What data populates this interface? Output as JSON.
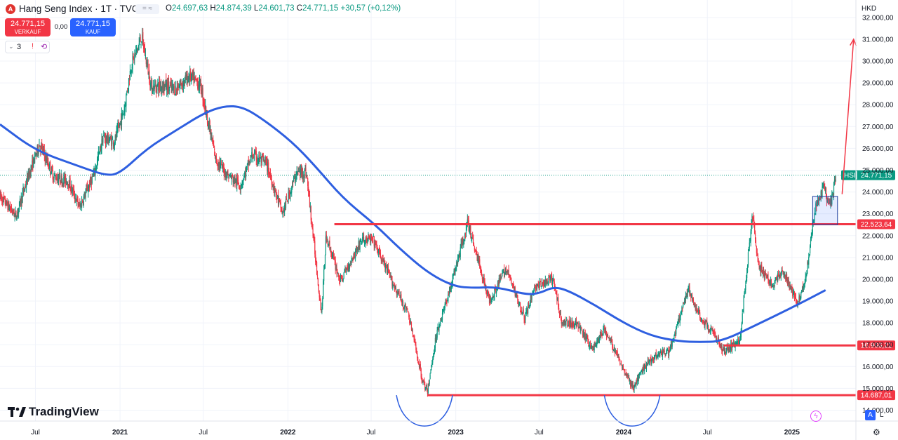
{
  "header": {
    "logo_letter": "A",
    "title": "Hang Seng Index · 1T · TVC",
    "mini_icon": "=  ≈",
    "ohlc": {
      "o_label": "O",
      "o": "24.697,63",
      "h_label": "H",
      "h": "24.874,39",
      "l_label": "L",
      "l": "24.601,73",
      "c_label": "C",
      "c": "24.771,15",
      "change": "+30,57 (+0,12%)"
    },
    "sell": {
      "value": "24.771,15",
      "label": "VERKAUF"
    },
    "buy": {
      "value": "24.771,15",
      "label": "KAUF"
    },
    "spread": "0,00",
    "indicator_count": "3"
  },
  "currency": "HKD",
  "brand": "TradingView",
  "scale_buttons": {
    "auto": "A",
    "log": "L"
  },
  "colors": {
    "up": "#089981",
    "down": "#f23645",
    "ma": "#2e5fe0",
    "level": "#f23645",
    "accent": "#2962ff"
  },
  "chart_data": {
    "type": "candlestick",
    "symbol": "HSI",
    "last_price": 24771.15,
    "last_price_label": "24.771,15",
    "y_range": [
      13500,
      32800
    ],
    "y_ticks": [
      14000,
      15000,
      16000,
      17000,
      18000,
      19000,
      20000,
      21000,
      22000,
      23000,
      24000,
      25000,
      26000,
      27000,
      28000,
      29000,
      30000,
      31000,
      32000
    ],
    "y_tick_labels": [
      "14.000,00",
      "15.000,00",
      "16.000,00",
      "17.000,00",
      "18.000,00",
      "19.000,00",
      "20.000,00",
      "21.000,00",
      "22.000,00",
      "23.000,00",
      "24.000,00",
      "25.000,00",
      "26.000,00",
      "27.000,00",
      "28.000,00",
      "29.000,00",
      "30.000,00",
      "31.000,00",
      "32.000,00"
    ],
    "x_range": [
      "2020-04-15",
      "2025-05-20"
    ],
    "x_ticks": [
      {
        "date": "2020-07-01",
        "label": "Jul"
      },
      {
        "date": "2021-01-01",
        "label": "2021"
      },
      {
        "date": "2021-07-01",
        "label": "Jul"
      },
      {
        "date": "2022-01-01",
        "label": "2022"
      },
      {
        "date": "2022-07-01",
        "label": "Jul"
      },
      {
        "date": "2023-01-01",
        "label": "2023"
      },
      {
        "date": "2023-07-01",
        "label": "Jul"
      },
      {
        "date": "2024-01-01",
        "label": "2024"
      },
      {
        "date": "2024-07-01",
        "label": "Jul"
      },
      {
        "date": "2025-01-01",
        "label": "2025"
      }
    ],
    "price_path": [
      [
        "2020-04-15",
        23800
      ],
      [
        "2020-05-20",
        22900
      ],
      [
        "2020-06-15",
        24700
      ],
      [
        "2020-07-10",
        26200
      ],
      [
        "2020-08-10",
        24700
      ],
      [
        "2020-09-10",
        24500
      ],
      [
        "2020-10-05",
        23300
      ],
      [
        "2020-11-05",
        24800
      ],
      [
        "2020-11-25",
        26500
      ],
      [
        "2020-12-20",
        26300
      ],
      [
        "2021-01-10",
        27800
      ],
      [
        "2021-01-25",
        29800
      ],
      [
        "2021-02-17",
        31100
      ],
      [
        "2021-03-10",
        28800
      ],
      [
        "2021-04-05",
        28900
      ],
      [
        "2021-05-01",
        28700
      ],
      [
        "2021-06-01",
        29300
      ],
      [
        "2021-06-25",
        28900
      ],
      [
        "2021-07-28",
        25500
      ],
      [
        "2021-08-20",
        24850
      ],
      [
        "2021-09-20",
        24300
      ],
      [
        "2021-10-15",
        25700
      ],
      [
        "2021-11-15",
        25300
      ],
      [
        "2021-12-20",
        23000
      ],
      [
        "2022-01-20",
        24900
      ],
      [
        "2022-02-10",
        24900
      ],
      [
        "2022-03-15",
        18400
      ],
      [
        "2022-03-25",
        22000
      ],
      [
        "2022-04-25",
        19900
      ],
      [
        "2022-06-10",
        21800
      ],
      [
        "2022-07-05",
        21800
      ],
      [
        "2022-08-15",
        19900
      ],
      [
        "2022-09-20",
        18400
      ],
      [
        "2022-10-20",
        15400
      ],
      [
        "2022-10-31",
        14800
      ],
      [
        "2022-11-20",
        17500
      ],
      [
        "2022-12-20",
        19600
      ],
      [
        "2023-01-27",
        22600
      ],
      [
        "2023-03-15",
        19000
      ],
      [
        "2023-04-20",
        20500
      ],
      [
        "2023-05-31",
        18200
      ],
      [
        "2023-06-20",
        19600
      ],
      [
        "2023-07-31",
        20000
      ],
      [
        "2023-08-20",
        18000
      ],
      [
        "2023-09-20",
        18000
      ],
      [
        "2023-10-25",
        16800
      ],
      [
        "2023-11-20",
        17700
      ],
      [
        "2024-01-22",
        15000
      ],
      [
        "2024-02-15",
        16000
      ],
      [
        "2024-03-15",
        16600
      ],
      [
        "2024-04-10",
        16700
      ],
      [
        "2024-05-20",
        19500
      ],
      [
        "2024-06-20",
        18100
      ],
      [
        "2024-07-15",
        17500
      ],
      [
        "2024-08-05",
        16700
      ],
      [
        "2024-09-10",
        17200
      ],
      [
        "2024-09-25",
        20500
      ],
      [
        "2024-10-07",
        23100
      ],
      [
        "2024-10-20",
        20600
      ],
      [
        "2024-11-20",
        19700
      ],
      [
        "2024-12-10",
        20400
      ],
      [
        "2025-01-13",
        18900
      ],
      [
        "2025-02-01",
        20200
      ],
      [
        "2025-02-20",
        23200
      ],
      [
        "2025-03-10",
        24200
      ],
      [
        "2025-03-25",
        23300
      ],
      [
        "2025-04-07",
        24771
      ]
    ],
    "moving_average": [
      [
        "2020-04-15",
        27100
      ],
      [
        "2020-07-01",
        25900
      ],
      [
        "2020-10-01",
        25200
      ],
      [
        "2020-12-01",
        24750
      ],
      [
        "2021-01-01",
        24850
      ],
      [
        "2021-03-01",
        26000
      ],
      [
        "2021-05-01",
        26800
      ],
      [
        "2021-07-01",
        27600
      ],
      [
        "2021-08-15",
        27950
      ],
      [
        "2021-09-25",
        27900
      ],
      [
        "2021-11-10",
        27300
      ],
      [
        "2022-01-10",
        26300
      ],
      [
        "2022-03-01",
        25200
      ],
      [
        "2022-05-01",
        23700
      ],
      [
        "2022-07-10",
        22500
      ],
      [
        "2022-09-01",
        21400
      ],
      [
        "2022-11-01",
        20300
      ],
      [
        "2022-12-25",
        19700
      ],
      [
        "2023-02-01",
        19600
      ],
      [
        "2023-04-01",
        19650
      ],
      [
        "2023-06-01",
        19300
      ],
      [
        "2023-07-01",
        19350
      ],
      [
        "2023-08-01",
        19650
      ],
      [
        "2023-09-01",
        19500
      ],
      [
        "2023-11-01",
        18800
      ],
      [
        "2024-01-01",
        18000
      ],
      [
        "2024-03-01",
        17400
      ],
      [
        "2024-05-01",
        17150
      ],
      [
        "2024-06-15",
        17120
      ],
      [
        "2024-08-01",
        17150
      ],
      [
        "2024-10-15",
        17900
      ],
      [
        "2025-01-01",
        18700
      ],
      [
        "2025-03-15",
        19500
      ]
    ],
    "levels": [
      {
        "value": 22523.64,
        "label": "22.523,64",
        "from": "2022-04-12",
        "to": "2025-05-20"
      },
      {
        "value": 16966.21,
        "label": "16.966,21",
        "from": "2024-08-05",
        "to": "2025-05-20"
      },
      {
        "value": 14687.01,
        "label": "14.687,01",
        "from": "2022-10-31",
        "to": "2025-05-20"
      }
    ],
    "annotations": {
      "box": {
        "from": "2025-02-15",
        "to": "2025-04-10",
        "low": 22500,
        "high": 23800
      },
      "arrow": {
        "from": [
          "2025-04-20",
          23900
        ],
        "to": [
          "2025-05-15",
          31000
        ]
      },
      "arcs": [
        {
          "from": "2022-08-25",
          "to": "2022-12-25",
          "bottom": 13700
        },
        {
          "from": "2023-11-20",
          "to": "2024-03-20",
          "bottom": 13700
        }
      ]
    }
  }
}
